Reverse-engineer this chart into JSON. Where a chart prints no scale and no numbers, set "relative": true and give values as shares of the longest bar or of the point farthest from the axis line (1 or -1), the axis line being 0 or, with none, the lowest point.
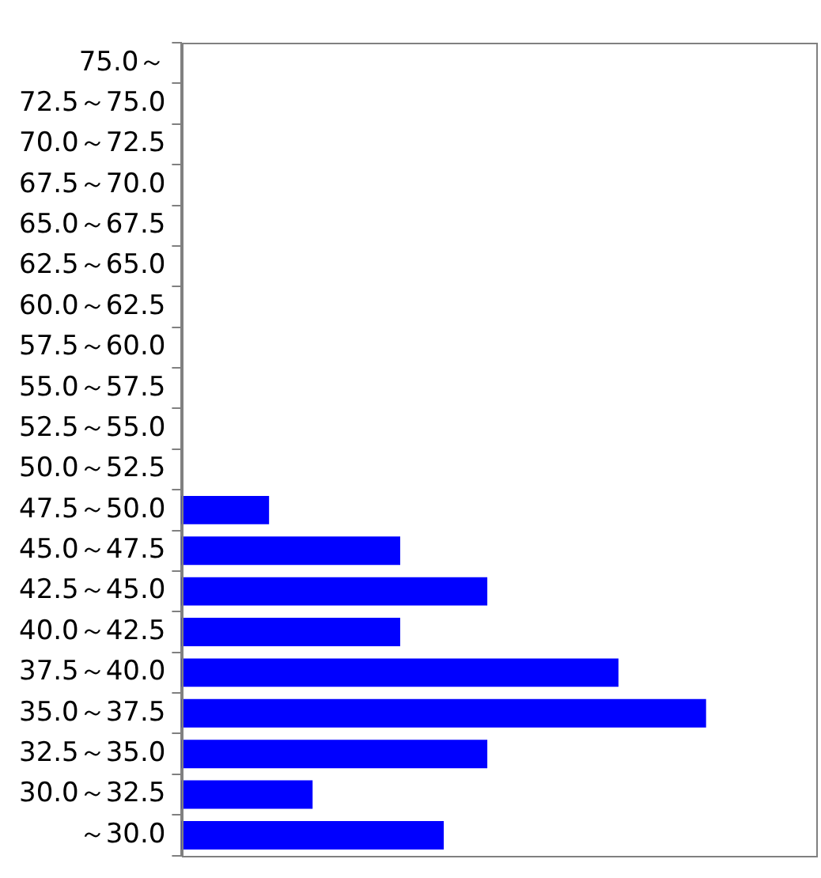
{
  "chart_data": {
    "type": "bar",
    "orientation": "horizontal",
    "relative": true,
    "categories": [
      "75.0～",
      "72.5～75.0",
      "70.0～72.5",
      "67.5～70.0",
      "65.0～67.5",
      "62.5～65.0",
      "60.0～62.5",
      "57.5～60.0",
      "55.0～57.5",
      "52.5～55.0",
      "50.0～52.5",
      "47.5～50.0",
      "45.0～47.5",
      "42.5～45.0",
      "40.0～42.5",
      "37.5～40.0",
      "35.0～37.5",
      "32.5～35.0",
      "30.0～32.5",
      "～30.0"
    ],
    "values": [
      0,
      0,
      0,
      0,
      0,
      0,
      0,
      0,
      0,
      0,
      0,
      0.167,
      0.417,
      0.583,
      0.417,
      0.833,
      1,
      0.583,
      0.25,
      0.5
    ],
    "color": "#0000ff",
    "legend": false
  }
}
